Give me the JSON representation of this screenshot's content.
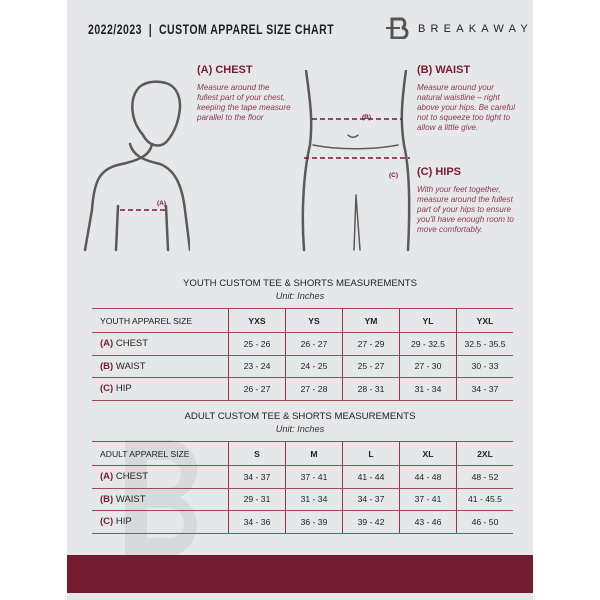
{
  "header": {
    "title": "2022/2023  |  CUSTOM APPAREL SIZE CHART",
    "brand": "BREAKAWAY"
  },
  "sections": {
    "chest": {
      "heading": "(A) CHEST",
      "text": "Measure around the fullest part of your chest, keeping the tape measure parallel to the floor",
      "marker": "(A)"
    },
    "waist": {
      "heading": "(B) WAIST",
      "text": "Measure around your natural waistline – right above your hips. Be careful not to squeeze too tight to allow a little give.",
      "marker": "(B)"
    },
    "hips": {
      "heading": "(C) HIPS",
      "text": "With your feet together, measure around the fullest part of your hips to ensure you'll have enough room to move comfortably.",
      "marker": "(C)"
    }
  },
  "youth": {
    "title": "YOUTH CUSTOM TEE & SHORTS MEASUREMENTS",
    "unit": "Unit: Inches",
    "header": "YOUTH APPAREL SIZE",
    "sizes": [
      "YXS",
      "YS",
      "YM",
      "YL",
      "YXL"
    ],
    "rows": [
      {
        "letter": "(A)",
        "label": "CHEST",
        "values": [
          "25 - 26",
          "26 - 27",
          "27 - 29",
          "29 - 32.5",
          "32.5 - 35.5"
        ]
      },
      {
        "letter": "(B)",
        "label": "WAIST",
        "values": [
          "23 - 24",
          "24 - 25",
          "25 - 27",
          "27 - 30",
          "30 - 33"
        ]
      },
      {
        "letter": "(C)",
        "label": "HIP",
        "values": [
          "26 - 27",
          "27 - 28",
          "28 - 31",
          "31 - 34",
          "34 - 37"
        ]
      }
    ]
  },
  "adult": {
    "title": "ADULT CUSTOM TEE & SHORTS MEASUREMENTS",
    "unit": "Unit: Inches",
    "header": "ADULT APPAREL SIZE",
    "sizes": [
      "S",
      "M",
      "L",
      "XL",
      "2XL"
    ],
    "rows": [
      {
        "letter": "(A)",
        "label": "CHEST",
        "values": [
          "34 - 37",
          "37 - 41",
          "41 - 44",
          "44 - 48",
          "48 - 52"
        ]
      },
      {
        "letter": "(B)",
        "label": "WAIST",
        "values": [
          "29 - 31",
          "31 - 34",
          "34 - 37",
          "37 - 41",
          "41 - 45.5"
        ]
      },
      {
        "letter": "(C)",
        "label": "HIP",
        "values": [
          "34 - 36",
          "36 - 39",
          "39 - 42",
          "43 - 46",
          "46 - 50"
        ]
      }
    ]
  },
  "colors": {
    "accent": "#731b31",
    "panel": "#e6e7e9"
  }
}
